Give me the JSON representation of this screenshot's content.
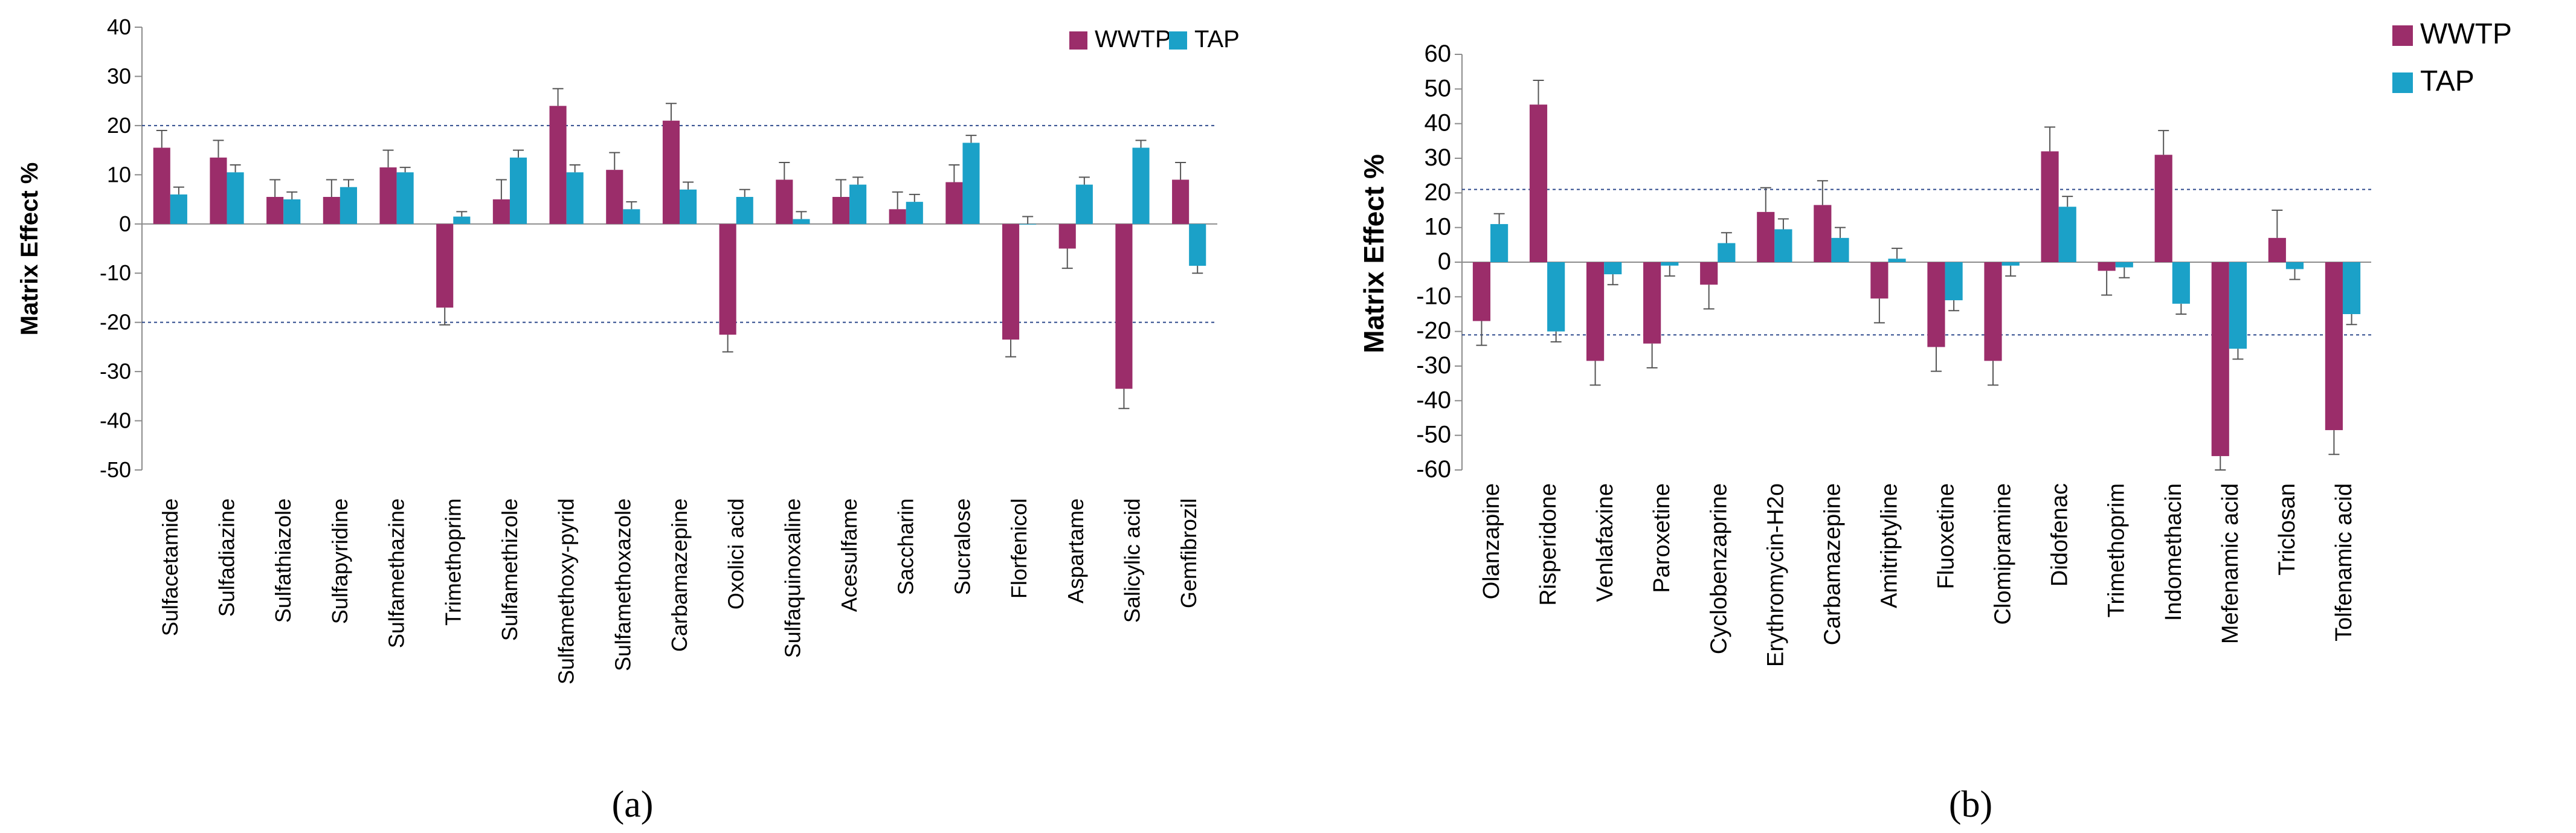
{
  "colors": {
    "wwtp": "#9B2D6A",
    "tap": "#1BA1C8",
    "ref_line": "#2E4A8C",
    "errbar": "#555555",
    "axis": "#8C8C8C"
  },
  "chart_data": [
    {
      "type": "bar",
      "panel_label": "(a)",
      "ylabel": "Matrix Effect %",
      "ylim": [
        -50,
        40
      ],
      "yticks": [
        -50,
        -40,
        -30,
        -20,
        -10,
        0,
        10,
        20,
        30,
        40
      ],
      "reference_lines": [
        20,
        -20
      ],
      "legend": [
        "WWTP",
        "TAP"
      ],
      "legend_position": "top-right",
      "categories": [
        "Sulfacetamide",
        "Sulfadiazine",
        "Sulfathiazole",
        "Sulfapyridine",
        "Sulfamethazine",
        "Trimethoprim",
        "Sulfamethizole",
        "Sulfamethoxy-pyrid",
        "Sulfamethoxazole",
        "Carbamazepine",
        "Oxolici acid",
        "Sulfaquinoxaline",
        "Acesulfame",
        "Saccharin",
        "Sucralose",
        "Florfenicol",
        "Aspartame",
        "Salicylic acid",
        "Gemfibrozil"
      ],
      "series": [
        {
          "name": "WWTP",
          "values": [
            15.5,
            13.5,
            5.5,
            5.5,
            11.5,
            -17,
            5,
            24,
            11,
            21,
            -22.5,
            9,
            5.5,
            3,
            8.5,
            -23.5,
            -5,
            -33.5,
            9
          ],
          "errors": [
            3.5,
            3.5,
            3.5,
            3.5,
            3.5,
            3.5,
            4,
            3.5,
            3.5,
            3.5,
            3.5,
            3.5,
            3.5,
            3.5,
            3.5,
            3.5,
            4,
            4,
            3.5
          ]
        },
        {
          "name": "TAP",
          "values": [
            6,
            10.5,
            5,
            7.5,
            10.5,
            1.5,
            13.5,
            10.5,
            3,
            7,
            5.5,
            1,
            8,
            4.5,
            16.5,
            0,
            8,
            15.5,
            -8.5
          ],
          "errors": [
            1.5,
            1.5,
            1.5,
            1.5,
            1,
            1,
            1.5,
            1.5,
            1.5,
            1.5,
            1.5,
            1.5,
            1.5,
            1.5,
            1.5,
            1.5,
            1.5,
            1.5,
            1.5
          ]
        }
      ]
    },
    {
      "type": "bar",
      "panel_label": "(b)",
      "ylabel": "Matrix Effect %",
      "ylim": [
        -60,
        60
      ],
      "yticks": [
        -60,
        -50,
        -40,
        -30,
        -20,
        -10,
        0,
        10,
        20,
        30,
        40,
        50,
        60
      ],
      "reference_lines": [
        21,
        -21
      ],
      "legend": [
        "WWTP",
        "TAP"
      ],
      "legend_position": "top-right",
      "categories": [
        "Olanzapine",
        "Risperidone",
        "Venlafaxine",
        "Paroxetine",
        "Cyclobenzaprine",
        "Erythromycin-H2o",
        "Carbamazepine",
        "Amitriptyline",
        "Fluoxetine",
        "Clomipramine",
        "Didofenac",
        "Trimethoprim",
        "Indomethacin",
        "Mefenamic acid",
        "Triclosan",
        "Tolfenamic acid"
      ],
      "series": [
        {
          "name": "WWTP",
          "values": [
            -17,
            45.5,
            -28.5,
            -23.5,
            -6.5,
            14.5,
            16.5,
            -10.5,
            -24.5,
            -28.5,
            32,
            -2.5,
            31,
            -56,
            7,
            -48.5
          ],
          "errors": [
            7,
            7,
            7,
            7,
            7,
            7,
            7,
            7,
            7,
            7,
            7,
            7,
            7,
            4,
            8,
            7
          ]
        },
        {
          "name": "TAP",
          "values": [
            11,
            -20,
            -3.5,
            -1,
            5.5,
            9.5,
            7,
            1,
            -11,
            -1,
            16,
            -1.5,
            -12,
            -25,
            -2,
            -15
          ],
          "errors": [
            3,
            3,
            3,
            3,
            3,
            3,
            3,
            3,
            3,
            3,
            3,
            3,
            3,
            3,
            3,
            3
          ]
        }
      ]
    }
  ]
}
